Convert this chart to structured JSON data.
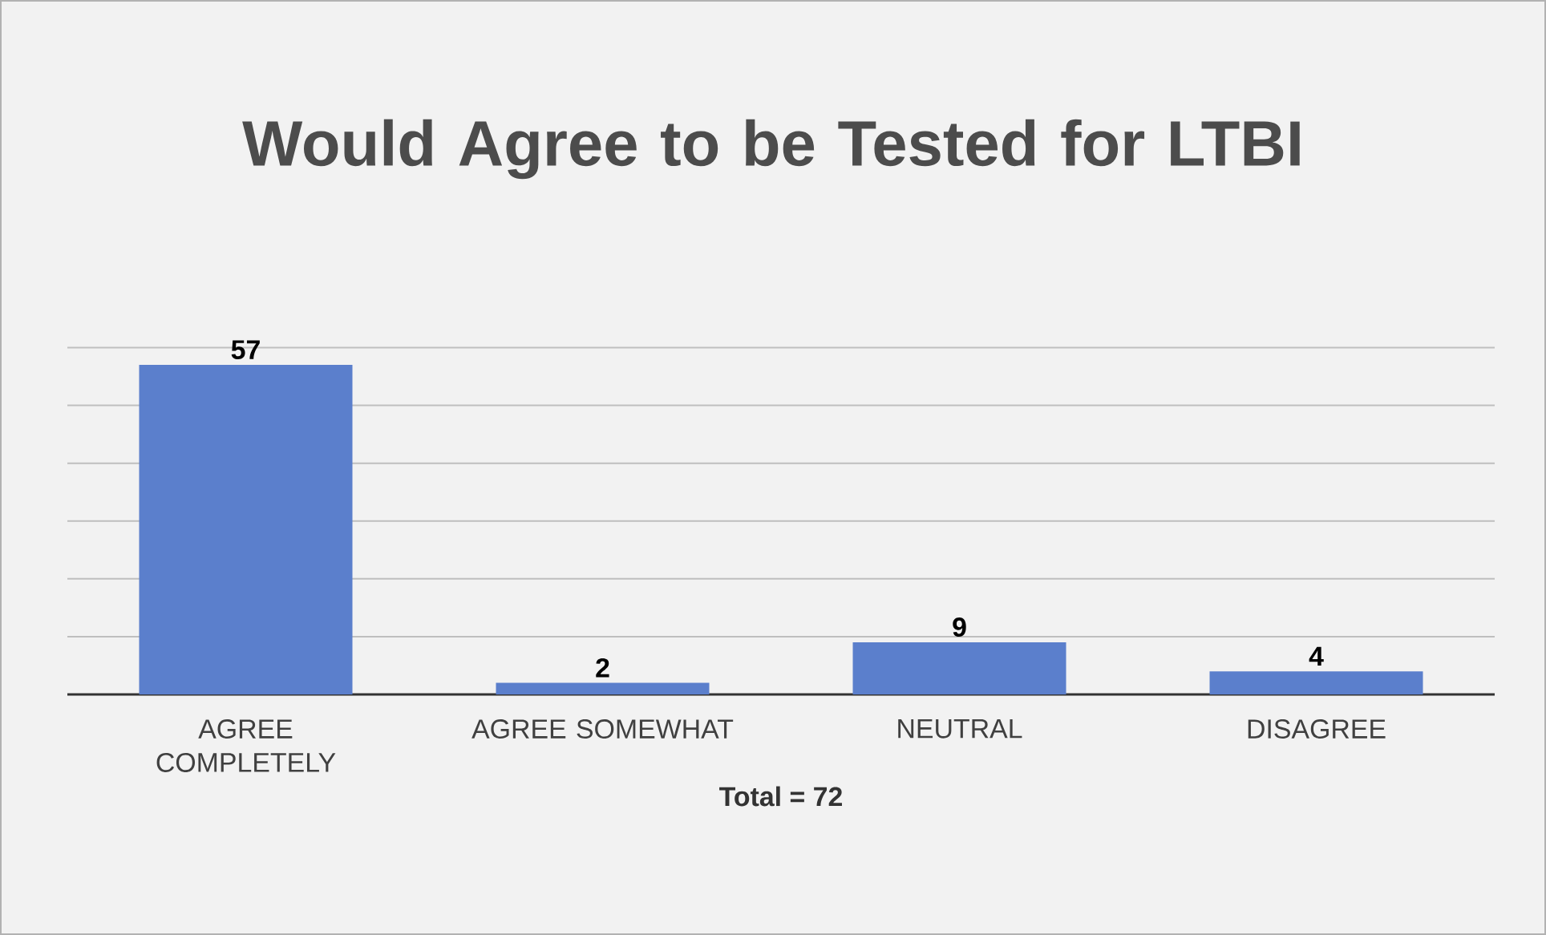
{
  "chart_data": {
    "type": "bar",
    "title": "Would Agree to be Tested for LTBI",
    "categories": [
      "AGREE COMPLETELY",
      "AGREE SOMEWHAT",
      "NEUTRAL",
      "DISAGREE"
    ],
    "values": [
      57,
      2,
      9,
      4
    ],
    "color": "#5b7fcc",
    "xlabel": "Total  = 72",
    "tick_labels": "x",
    "grid": "y",
    "data_labels": true
  }
}
